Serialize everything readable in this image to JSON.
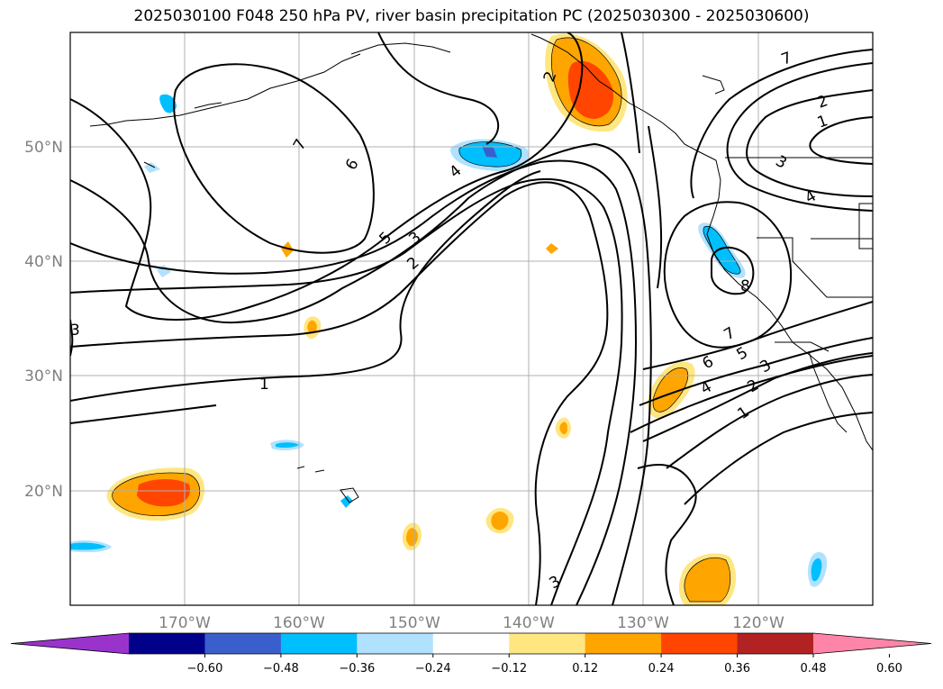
{
  "title": "2025030100 F048 250 hPa PV, river basin precipitation PC (2025030300 - 2025030600)",
  "lat_labels": [
    "50°N",
    "40°N",
    "30°N",
    "20°N"
  ],
  "lon_labels": [
    "170°W",
    "160°W",
    "150°W",
    "140°W",
    "130°W",
    "120°W"
  ],
  "colorbar": {
    "ticks": [
      "−0.60",
      "−0.48",
      "−0.36",
      "−0.24",
      "−0.12",
      "0.12",
      "0.24",
      "0.36",
      "0.48",
      "0.60"
    ],
    "colors": [
      "#9933cc",
      "#00008b",
      "#3a5fcd",
      "#00bfff",
      "#b0e2ff",
      "#ffffff",
      "#ffe680",
      "#ffa500",
      "#ff4500",
      "#b22222",
      "#ff85a8"
    ]
  },
  "contour_labels": {
    "c7a": "7",
    "c6a": "6",
    "c5a": "5",
    "c4a": "4",
    "c3a": "3",
    "c2a": "2",
    "c1a": "1",
    "c2b": "2",
    "c7b": "7",
    "c2c": "2",
    "c1b": "1",
    "c3b": "3",
    "c4b": "4",
    "c8": "8",
    "c7c": "7",
    "c6b": "6",
    "c5b": "5",
    "c3c": "3",
    "c2d": "2",
    "c1c": "1",
    "c4c": "4",
    "c3d": "3",
    "c3e": "3"
  }
}
